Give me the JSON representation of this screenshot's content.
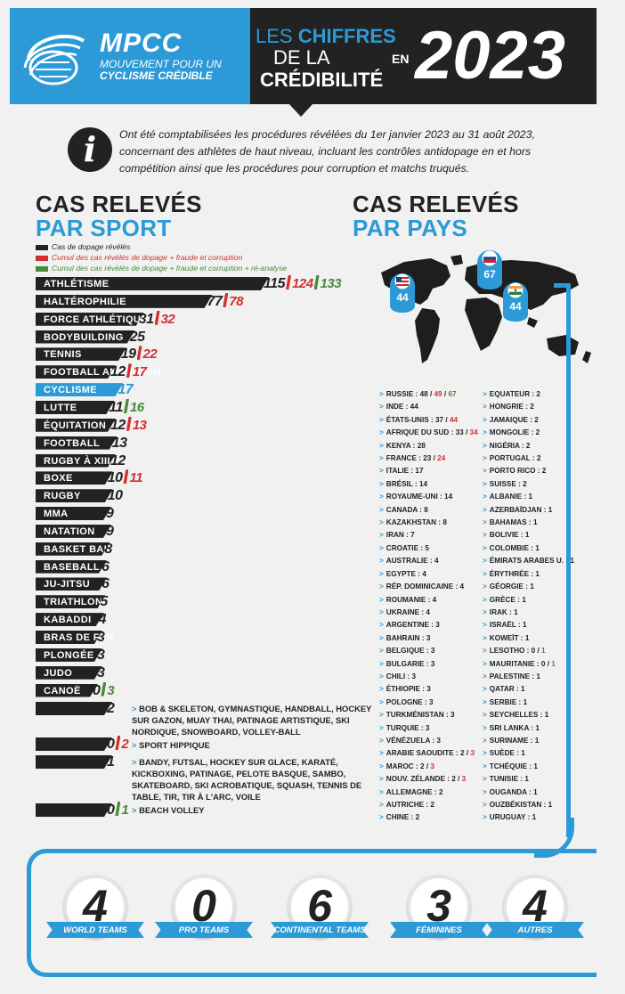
{
  "header": {
    "logo_name": "MPCC",
    "logo_sub_1": "MOUVEMENT POUR UN",
    "logo_sub_2": "CYCLISME CRÉDIBLE",
    "title_les": "LES",
    "title_chiffres": "CHIFFRES",
    "title_dela": "DE LA",
    "title_credibilite": "CRÉDIBILITÉ",
    "title_en": "EN",
    "year": "2023"
  },
  "info": {
    "icon": "info-icon",
    "text": "Ont été comptabilisées les procédures révélées du 1er janvier 2023 au 31 août 2023, concernant des athlètes de haut niveau, incluant les contrôles antidopage en et hors compétition ainsi que les procédures pour corruption et matchs truqués."
  },
  "sport_section": {
    "title_line1": "CAS RELEVÉS",
    "title_line2": "PAR SPORT"
  },
  "country_section": {
    "title_line1": "CAS RELEVÉS",
    "title_line2": "PAR PAYS"
  },
  "legend": [
    {
      "label": "Cas de dopage révélés",
      "color": "#222222"
    },
    {
      "label": "Cumul des cas révélés de dopage + fraude et corruption",
      "color": "#d32f2f"
    },
    {
      "label": "Cumul des cas révélés de dopage + fraude et corruption + ré-analyse",
      "color": "#4a8a3a"
    }
  ],
  "colors": {
    "accent": "#2b9ad6",
    "dark": "#222222",
    "red": "#d32f2f",
    "green": "#4a8a3a"
  },
  "chart_data": {
    "type": "bar",
    "title": "CAS RELEVÉS PAR SPORT",
    "categories": [
      "ATHLÉTISME",
      "HALTÉROPHILIE",
      "FORCE ATHLÉTIQUE",
      "BODYBUILDING",
      "TENNIS",
      "FOOTBALL AMÉRICAIN",
      "CYCLISME",
      "LUTTE",
      "ÉQUITATION",
      "FOOTBALL",
      "RUGBY À XIII",
      "BOXE",
      "RUGBY",
      "MMA",
      "NATATION",
      "BASKET BALL",
      "BASEBALL",
      "JU-JITSU",
      "TRIATHLON",
      "KABADDI",
      "BRAS DE FER",
      "PLONGÉE",
      "JUDO",
      "CANOË"
    ],
    "series": [
      {
        "name": "Cas de dopage révélés",
        "values": [
          115,
          77,
          31,
          25,
          19,
          12,
          17,
          11,
          12,
          13,
          12,
          10,
          10,
          9,
          9,
          8,
          6,
          6,
          5,
          4,
          3,
          3,
          3,
          0
        ]
      },
      {
        "name": "Cumul dopage + fraude et corruption",
        "values": [
          124,
          78,
          32,
          null,
          22,
          17,
          null,
          null,
          13,
          null,
          null,
          11,
          null,
          null,
          null,
          null,
          null,
          null,
          null,
          null,
          null,
          null,
          null,
          null
        ]
      },
      {
        "name": "Cumul + ré-analyse",
        "values": [
          133,
          null,
          null,
          null,
          null,
          null,
          null,
          16,
          null,
          null,
          null,
          null,
          null,
          null,
          null,
          null,
          null,
          null,
          null,
          null,
          null,
          null,
          null,
          3
        ]
      }
    ],
    "highlight": "CYCLISME",
    "extra_rows": [
      {
        "value": "2",
        "value2": null,
        "value3": null,
        "text": "BOB & SKELETON, GYMNASTIQUE, HANDBALL, HOCKEY SUR GAZON, MUAY THAI, PATINAGE ARTISTIQUE, SKI NORDIQUE, SNOWBOARD, VOLLEY-BALL"
      },
      {
        "value": "0",
        "value2": "2",
        "value3": null,
        "text": "SPORT HIPPIQUE"
      },
      {
        "value": "1",
        "value2": null,
        "value3": null,
        "text": "BANDY, FUTSAL, HOCKEY SUR GLACE, KARATÉ, KICKBOXING, PATINAGE, PELOTE BASQUE, SAMBO, SKATEBOARD, SKI ACROBATIQUE, SQUASH, TENNIS DE TABLE, TIR, TIR À L'ARC, VOILE"
      },
      {
        "value": "0",
        "value2": null,
        "value3": "1",
        "text": "BEACH VOLLEY"
      }
    ]
  },
  "map": {
    "pins": [
      {
        "country": "ÉTATS-UNIS",
        "value": "44",
        "icon": "usa-flag-icon"
      },
      {
        "country": "RUSSIE",
        "value": "67",
        "icon": "russia-flag-icon"
      },
      {
        "country": "INDE",
        "value": "44",
        "icon": "india-flag-icon"
      }
    ]
  },
  "countries_col1": [
    {
      "name": "RUSSIE",
      "v1": "48",
      "v2": "49",
      "v3": "67"
    },
    {
      "name": "INDE",
      "v1": "44"
    },
    {
      "name": "ÉTATS-UNIS",
      "v1": "37",
      "v2": "44"
    },
    {
      "name": "AFRIQUE DU SUD",
      "v1": "33",
      "v2": "34"
    },
    {
      "name": "KENYA",
      "v1": "28"
    },
    {
      "name": "FRANCE",
      "v1": "23",
      "v2": "24"
    },
    {
      "name": "ITALIE",
      "v1": "17"
    },
    {
      "name": "BRÉSIL",
      "v1": "14"
    },
    {
      "name": "ROYAUME-UNI",
      "v1": "14"
    },
    {
      "name": "CANADA",
      "v1": "8"
    },
    {
      "name": "KAZAKHSTAN",
      "v1": "8"
    },
    {
      "name": "IRAN",
      "v1": "7"
    },
    {
      "name": "CROATIE",
      "v1": "5"
    },
    {
      "name": "AUSTRALIE",
      "v1": "4"
    },
    {
      "name": "EGYPTE",
      "v1": "4"
    },
    {
      "name": "RÉP. DOMINICAINE",
      "v1": "4"
    },
    {
      "name": "ROUMANIE",
      "v1": "4"
    },
    {
      "name": "UKRAINE",
      "v1": "4"
    },
    {
      "name": "ARGENTINE",
      "v1": "3"
    },
    {
      "name": "BAHRAIN",
      "v1": "3"
    },
    {
      "name": "BELGIQUE",
      "v1": "3"
    },
    {
      "name": "BULGARIE",
      "v1": "3"
    },
    {
      "name": "CHILI",
      "v1": "3"
    },
    {
      "name": "ÉTHIOPIE",
      "v1": "3"
    },
    {
      "name": "POLOGNE",
      "v1": "3"
    },
    {
      "name": "TURKMÉNISTAN",
      "v1": "3"
    },
    {
      "name": "TURQUIE",
      "v1": "3"
    },
    {
      "name": "VÉNÉZUELA",
      "v1": "3"
    },
    {
      "name": "ARABIE SAOUDITE",
      "v1": "2",
      "v2": "3"
    },
    {
      "name": "MAROC",
      "v1": "2",
      "v2": "3"
    },
    {
      "name": "NOUV. ZÉLANDE",
      "v1": "2",
      "v2": "3"
    },
    {
      "name": "ALLEMAGNE",
      "v1": "2"
    },
    {
      "name": "AUTRICHE",
      "v1": "2"
    },
    {
      "name": "CHINE",
      "v1": "2"
    }
  ],
  "countries_col2": [
    {
      "name": "EQUATEUR",
      "v1": "2"
    },
    {
      "name": "HONGRIE",
      "v1": "2"
    },
    {
      "name": "JAMAIQUE",
      "v1": "2"
    },
    {
      "name": "MONGOLIE",
      "v1": "2"
    },
    {
      "name": "NIGÉRIA",
      "v1": "2"
    },
    {
      "name": "PORTUGAL",
      "v1": "2"
    },
    {
      "name": "PORTO RICO",
      "v1": "2"
    },
    {
      "name": "SUISSE",
      "v1": "2"
    },
    {
      "name": "ALBANIE",
      "v1": "1"
    },
    {
      "name": "AZERBAÏDJAN",
      "v1": "1"
    },
    {
      "name": "BAHAMAS",
      "v1": "1"
    },
    {
      "name": "BOLIVIE",
      "v1": "1"
    },
    {
      "name": "COLOMBIE",
      "v1": "1"
    },
    {
      "name": "ÉMIRATS ARABES U.",
      "v1": "1"
    },
    {
      "name": "ÉRYTHRÉE",
      "v1": "1"
    },
    {
      "name": "GÉORGIE",
      "v1": "1"
    },
    {
      "name": "GRÈCE",
      "v1": "1"
    },
    {
      "name": "IRAK",
      "v1": "1"
    },
    {
      "name": "ISRAËL",
      "v1": "1"
    },
    {
      "name": "KOWEÏT",
      "v1": "1"
    },
    {
      "name": "LESOTHO",
      "v1": "0",
      "v3": "1"
    },
    {
      "name": "MAURITANIE",
      "v1": "0",
      "v3": "1"
    },
    {
      "name": "PALESTINE",
      "v1": "1"
    },
    {
      "name": "QATAR",
      "v1": "1"
    },
    {
      "name": "SERBIE",
      "v1": "1"
    },
    {
      "name": "SEYCHELLES",
      "v1": "1"
    },
    {
      "name": "SRI LANKA",
      "v1": "1"
    },
    {
      "name": "SURINAME",
      "v1": "1"
    },
    {
      "name": "SUÈDE",
      "v1": "1"
    },
    {
      "name": "TCHÉQUIE",
      "v1": "1"
    },
    {
      "name": "TUNISIE",
      "v1": "1"
    },
    {
      "name": "OUGANDA",
      "v1": "1"
    },
    {
      "name": "OUZBÉKISTAN",
      "v1": "1"
    },
    {
      "name": "URUGUAY",
      "v1": "1"
    }
  ],
  "teams": [
    {
      "value": "4",
      "label": "WORLD TEAMS"
    },
    {
      "value": "0",
      "label": "PRO TEAMS"
    },
    {
      "value": "6",
      "label": "CONTINENTAL TEAMS"
    },
    {
      "value": "3",
      "label": "FÉMININES"
    },
    {
      "value": "4",
      "label": "AUTRES"
    }
  ]
}
